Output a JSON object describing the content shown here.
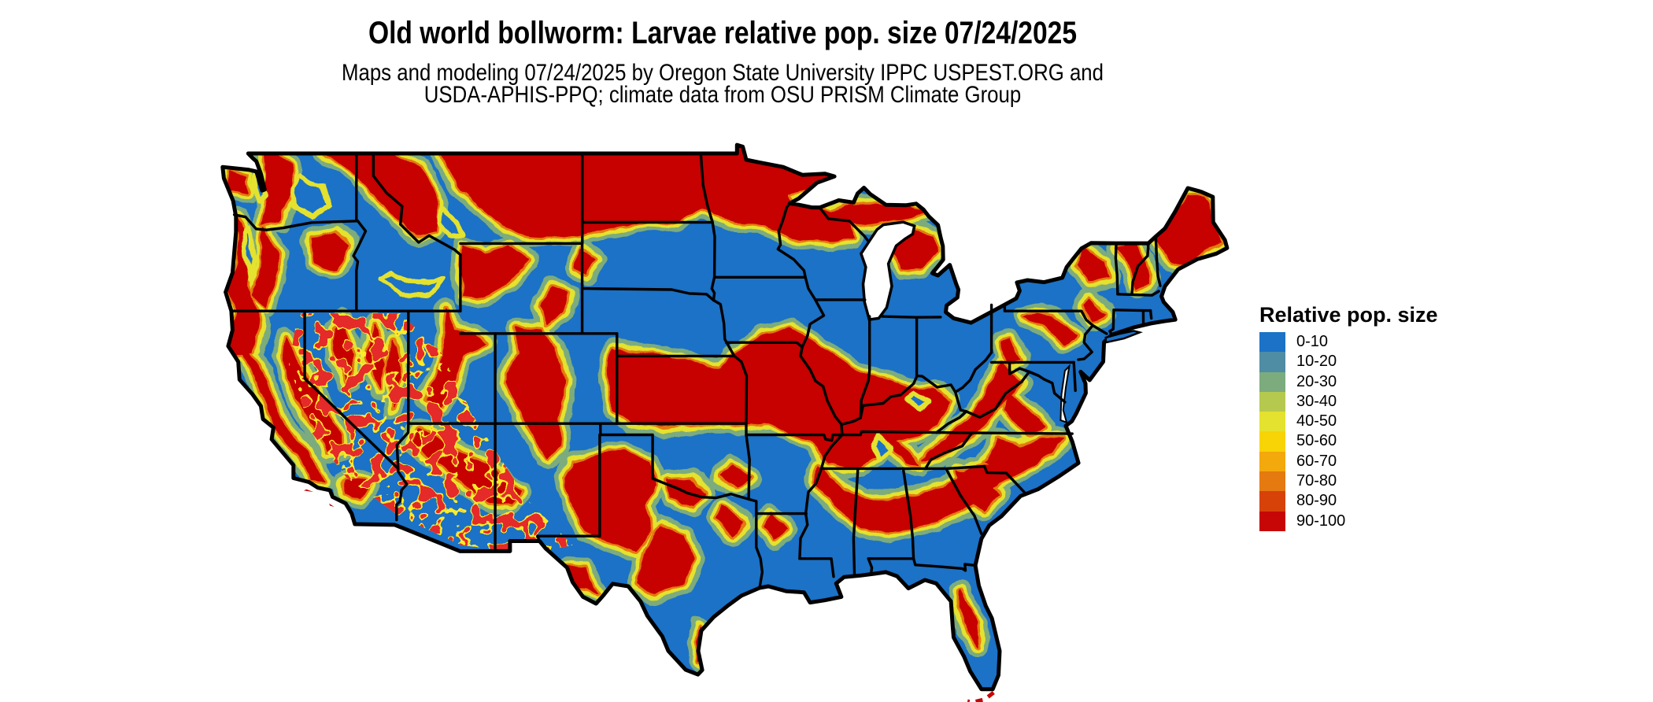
{
  "header": {
    "title": "Old world bollworm: Larvae relative pop. size 07/24/2025",
    "subtitle_line1": "Maps and modeling 07/24/2025 by Oregon State University IPPC USPEST.ORG and",
    "subtitle_line2": "USDA-APHIS-PPQ; climate data from OSU PRISM Climate Group"
  },
  "legend": {
    "title": "Relative pop. size",
    "items": [
      {
        "label": "0-10",
        "color": "#1b72c6"
      },
      {
        "label": "10-20",
        "color": "#4f8da4"
      },
      {
        "label": "20-30",
        "color": "#7cab7e"
      },
      {
        "label": "30-40",
        "color": "#b5c94e"
      },
      {
        "label": "40-50",
        "color": "#e4e22e"
      },
      {
        "label": "50-60",
        "color": "#f8d306"
      },
      {
        "label": "60-70",
        "color": "#f3a80b"
      },
      {
        "label": "70-80",
        "color": "#e57a10"
      },
      {
        "label": "80-90",
        "color": "#d74208"
      },
      {
        "label": "90-100",
        "color": "#c70606"
      }
    ]
  },
  "map": {
    "region": "Contiguous United States",
    "date_shown": "07/24/2025",
    "base_color": "#1b72c6",
    "boundary_color": "#000000",
    "water_color": "#ffffff"
  }
}
